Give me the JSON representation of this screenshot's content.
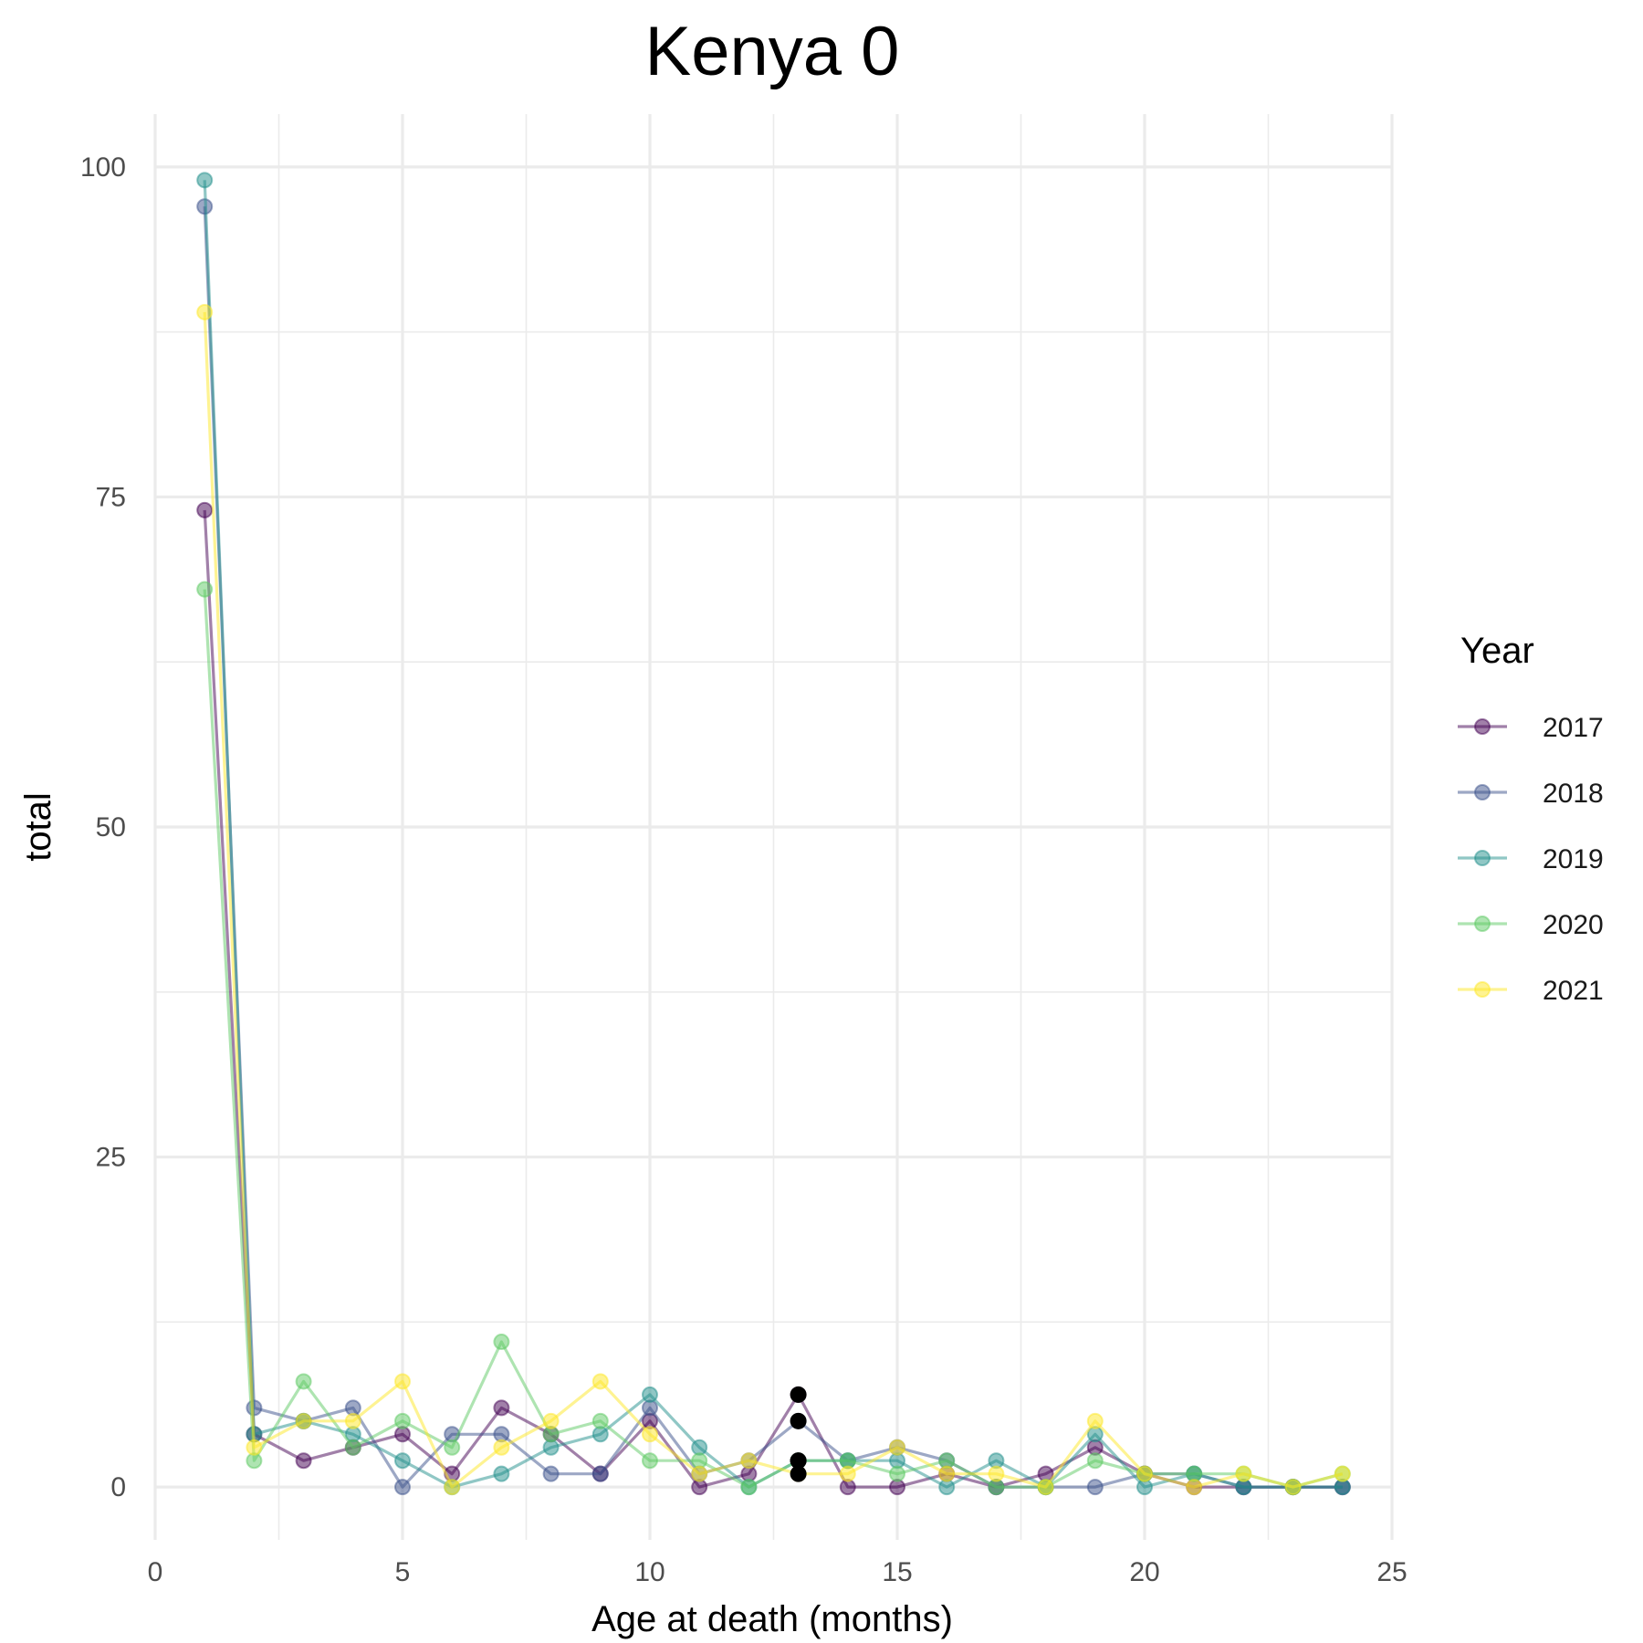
{
  "chart_data": {
    "type": "line",
    "title": "Kenya 0",
    "xlabel": "Age at death (months)",
    "ylabel": "total",
    "xlim": [
      0,
      25
    ],
    "ylim": [
      -4,
      104
    ],
    "xticks": [
      0,
      5,
      10,
      15,
      20,
      25
    ],
    "xtick_labels": [
      "0",
      "5",
      "10",
      "15",
      "20",
      "25"
    ],
    "yticks": [
      0,
      25,
      50,
      75,
      100
    ],
    "ytick_labels": [
      "0",
      "25",
      "50",
      "75",
      "100"
    ],
    "grid": true,
    "legend_title": "Year",
    "legend_position": "right",
    "x": [
      1,
      2,
      3,
      4,
      5,
      6,
      7,
      8,
      9,
      10,
      11,
      12,
      13,
      14,
      15,
      16,
      17,
      18,
      19,
      20,
      21,
      22,
      23,
      24
    ],
    "series": [
      {
        "name": "2017",
        "color": "#440154",
        "values": [
          74,
          4,
          2,
          3,
          4,
          1,
          6,
          4,
          1,
          5,
          0,
          1,
          7,
          0,
          0,
          1,
          0,
          1,
          3,
          1,
          0,
          0,
          0,
          0
        ]
      },
      {
        "name": "2018",
        "color": "#3b528b",
        "values": [
          97,
          6,
          5,
          6,
          0,
          4,
          4,
          1,
          1,
          6,
          1,
          2,
          5,
          2,
          3,
          2,
          0,
          0,
          0,
          1,
          1,
          0,
          0,
          0
        ]
      },
      {
        "name": "2019",
        "color": "#21908c",
        "values": [
          99,
          4,
          5,
          4,
          2,
          0,
          1,
          3,
          4,
          7,
          3,
          0,
          2,
          2,
          2,
          0,
          2,
          0,
          4,
          0,
          1,
          0,
          0,
          0
        ]
      },
      {
        "name": "2020",
        "color": "#5dc963",
        "values": [
          68,
          2,
          8,
          3,
          5,
          3,
          11,
          4,
          5,
          2,
          2,
          0,
          2,
          2,
          1,
          2,
          0,
          0,
          2,
          1,
          1,
          1,
          0,
          1
        ]
      },
      {
        "name": "2021",
        "color": "#fde725",
        "values": [
          89,
          3,
          5,
          5,
          8,
          0,
          3,
          5,
          8,
          4,
          1,
          2,
          1,
          1,
          3,
          1,
          1,
          0,
          5,
          1,
          0,
          1,
          0,
          1
        ]
      }
    ]
  }
}
